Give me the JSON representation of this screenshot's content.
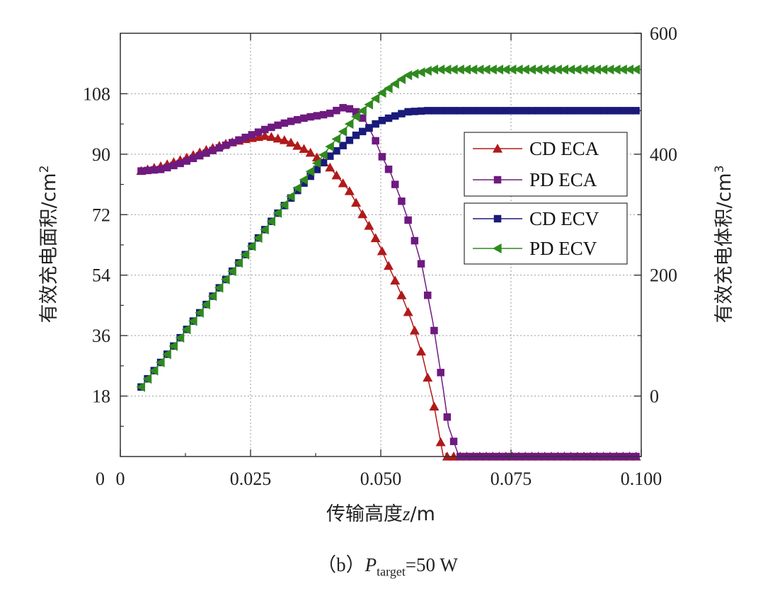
{
  "chart_data": {
    "type": "line",
    "xlabel_main": "传输高度",
    "xlabel_var": "z",
    "xlabel_unit": "/m",
    "ylabel_left": "有效充电面积/cm",
    "ylabel_left_sup": "2",
    "ylabel_right": "有效充电体积/cm",
    "ylabel_right_sup": "3",
    "xlim": [
      0,
      0.1
    ],
    "ylim_left": [
      0,
      126
    ],
    "ylim_right": [
      -100,
      600
    ],
    "x_ticks": [
      0,
      0.025,
      0.05,
      0.075,
      0.1
    ],
    "x_tick_labels": [
      "0",
      "0.025",
      "0.050",
      "0.075",
      "0.100"
    ],
    "y_left_ticks": [
      18,
      36,
      54,
      72,
      90,
      108
    ],
    "y_left_tick_labels": [
      "18",
      "36",
      "54",
      "72",
      "90",
      "108"
    ],
    "y_right_ticks": [
      0,
      200,
      400,
      600
    ],
    "y_right_tick_labels": [
      "0",
      "200",
      "400",
      "600"
    ],
    "grid": true,
    "legend_position": "center-right",
    "series": [
      {
        "name": "CD ECA",
        "axis": "left",
        "marker": "triangle-up",
        "color": "#b01a1a",
        "x": [
          0.004,
          0.008,
          0.012,
          0.016,
          0.02,
          0.024,
          0.028,
          0.032,
          0.036,
          0.04,
          0.044,
          0.048,
          0.05,
          0.052,
          0.054,
          0.056,
          0.058,
          0.06,
          0.062,
          0.1
        ],
        "values": [
          85,
          86.5,
          88.5,
          91,
          93,
          94.5,
          95.5,
          94,
          91,
          86.5,
          79,
          68,
          62,
          55,
          48,
          40,
          30,
          17,
          0,
          0
        ]
      },
      {
        "name": "PD ECA",
        "axis": "left",
        "marker": "square",
        "color": "#6e1a80",
        "x": [
          0.004,
          0.008,
          0.012,
          0.016,
          0.02,
          0.024,
          0.028,
          0.032,
          0.036,
          0.04,
          0.043,
          0.045,
          0.047,
          0.049,
          0.05,
          0.052,
          0.054,
          0.056,
          0.058,
          0.06,
          0.062,
          0.063,
          0.065,
          0.1
        ],
        "values": [
          85,
          85.5,
          87.5,
          90,
          92.5,
          95,
          97.5,
          99.5,
          101,
          102,
          104,
          103,
          100,
          94,
          90,
          84,
          76,
          67,
          56,
          40,
          20,
          9,
          0,
          0
        ]
      },
      {
        "name": "CD ECV",
        "axis": "right",
        "marker": "square",
        "color": "#1a1a7a",
        "x": [
          0.004,
          0.01,
          0.015,
          0.02,
          0.025,
          0.03,
          0.035,
          0.04,
          0.045,
          0.05,
          0.055,
          0.059,
          0.1
        ],
        "values": [
          15,
          80,
          135,
          190,
          245,
          300,
          350,
          395,
          430,
          455,
          470,
          472,
          472
        ]
      },
      {
        "name": "PD ECV",
        "axis": "right",
        "marker": "triangle-left",
        "color": "#2f8a1e",
        "x": [
          0.004,
          0.01,
          0.015,
          0.02,
          0.025,
          0.03,
          0.035,
          0.04,
          0.045,
          0.05,
          0.055,
          0.06,
          0.062,
          0.1
        ],
        "values": [
          15,
          80,
          135,
          190,
          245,
          300,
          355,
          410,
          460,
          500,
          530,
          540,
          540,
          540
        ]
      }
    ]
  },
  "caption": {
    "prefix": "（b）",
    "p_symbol": "P",
    "p_subscript": "target",
    "value": "=50 W"
  }
}
